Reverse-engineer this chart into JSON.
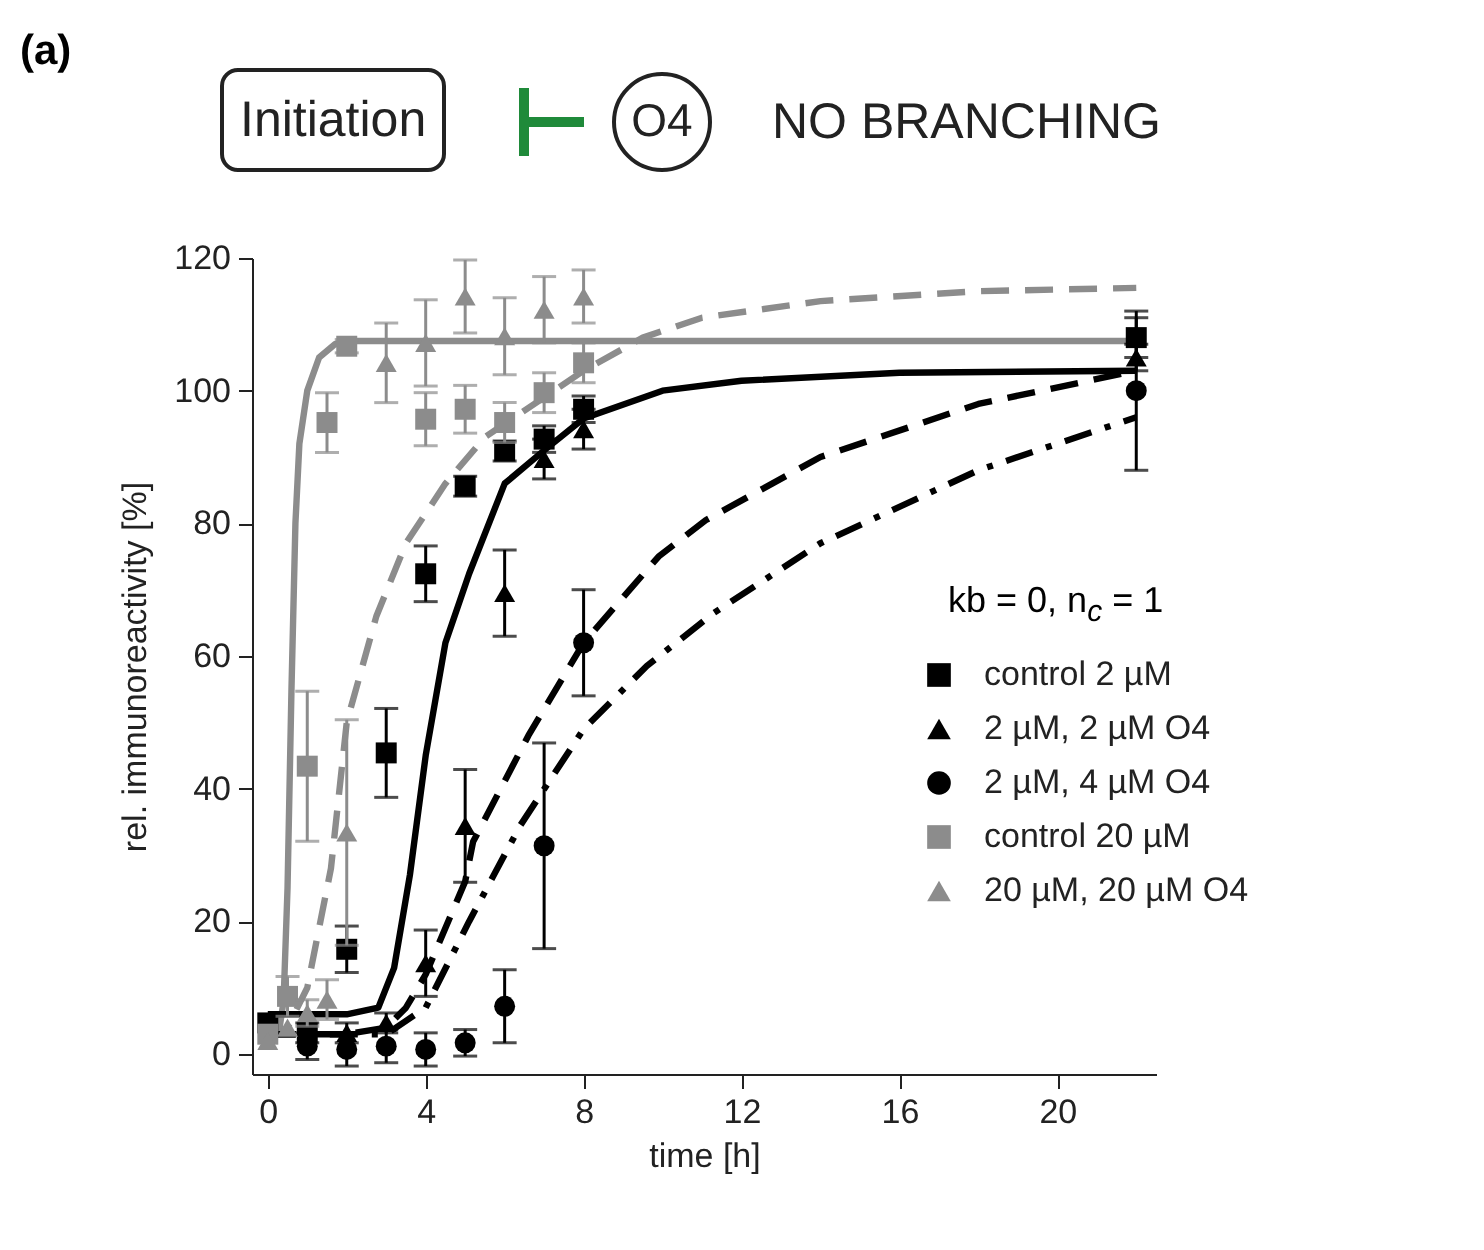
{
  "chart_data": {
    "type": "scatter",
    "annotations": [
      "(a)",
      "Initiation",
      "O4",
      "NO BRANCHING"
    ],
    "xlabel": "time [h]",
    "ylabel": "rel. immunoreactivity [%]",
    "legend_title": "kb = 0, n$_{c}$ = 1",
    "xlim": [
      -0.4,
      22.5
    ],
    "ylim": [
      -3,
      120
    ],
    "xticks": [
      0,
      4,
      8,
      12,
      16,
      20
    ],
    "yticks": [
      0,
      20,
      40,
      60,
      80,
      100,
      120
    ],
    "grid": false,
    "legend": "bottom right",
    "series": [
      {
        "type": "line",
        "color": "#8c8c8c",
        "line_style": "solid",
        "x": [
          0,
          0.3,
          0.4,
          0.5,
          0.6,
          0.7,
          0.8,
          1.0,
          1.3,
          1.7,
          2.2,
          22
        ],
        "values": [
          3,
          4,
          8,
          25,
          55,
          80,
          92,
          100,
          105,
          107,
          107.5,
          107.5
        ]
      },
      {
        "type": "line",
        "color": "#000000",
        "line_style": "solid",
        "x": [
          0,
          2,
          2.8,
          3.2,
          3.6,
          4,
          4.5,
          5.1,
          6,
          7,
          8,
          10,
          12,
          16,
          22
        ],
        "values": [
          6,
          6,
          7,
          13,
          27,
          45,
          62,
          72.4,
          86,
          91,
          95.8,
          100,
          101.5,
          102.7,
          103
        ]
      },
      {
        "type": "line",
        "color": "#8c8c8c",
        "line_style": "dashed",
        "x": [
          0,
          0.5,
          1,
          1.6,
          2,
          2.75,
          3.5,
          4.5,
          5.5,
          7,
          8,
          9.5,
          11,
          14,
          18,
          22
        ],
        "values": [
          2,
          4,
          10,
          28,
          50,
          66,
          77,
          86,
          93,
          99,
          103,
          108,
          111,
          113.5,
          115,
          115.5
        ]
      },
      {
        "type": "line",
        "color": "#000000",
        "line_style": "dashed",
        "x": [
          0,
          2,
          3,
          3.5,
          4,
          5,
          5.2,
          6.6,
          8,
          9.9,
          11.1,
          14,
          18,
          22
        ],
        "values": [
          3,
          3,
          4,
          7,
          12,
          26,
          32,
          48,
          62,
          75,
          80.5,
          90,
          98,
          103
        ]
      },
      {
        "type": "line",
        "color": "#000000",
        "line_style": "dashdot",
        "x": [
          0,
          3,
          4,
          5.1,
          6.4,
          8,
          9.6,
          11.3,
          14,
          18,
          22
        ],
        "values": [
          3,
          3,
          7,
          20,
          34.5,
          49,
          58.5,
          66.5,
          77,
          88,
          96
        ]
      },
      {
        "name": "control 2 µM",
        "marker": "square",
        "color": "#000000",
        "x": [
          0,
          1,
          2,
          3,
          4,
          5,
          6,
          7,
          8,
          22
        ],
        "values": [
          4.7,
          3.2,
          15.8,
          45.4,
          72.4,
          85.6,
          90.9,
          92.7,
          97.2,
          108
        ],
        "errors": [
          null,
          1.5,
          3.5,
          6.7,
          4.2,
          1.5,
          1.5,
          2,
          2,
          3
        ]
      },
      {
        "name": "2 µM, 2 µM O4",
        "marker": "triangle",
        "color": "#000000",
        "x": [
          2,
          3,
          4,
          5,
          6,
          7,
          8,
          22
        ],
        "values": [
          3.2,
          4.7,
          13.7,
          34.4,
          69.5,
          89.7,
          94.2,
          105
        ],
        "errors": [
          1.5,
          1.5,
          5,
          8.5,
          6.5,
          3,
          3,
          2
        ]
      },
      {
        "name": "2 µM, 4 µM O4",
        "marker": "circle",
        "color": "#000000",
        "x": [
          1,
          2,
          3,
          4,
          5,
          6,
          7,
          8,
          22
        ],
        "values": [
          1.2,
          0.7,
          1.2,
          0.7,
          1.7,
          7.2,
          31.4,
          62,
          100
        ],
        "errors": [
          2,
          2.5,
          2.5,
          2.5,
          2,
          5.5,
          15.5,
          8,
          12
        ]
      },
      {
        "name": "control 20 µM",
        "marker": "square",
        "color": "#8c8c8c",
        "x": [
          0,
          0.5,
          1,
          1.5,
          2,
          4,
          5,
          6,
          7,
          8
        ],
        "values": [
          3,
          8.7,
          43.4,
          95.2,
          106.7,
          95.7,
          97.2,
          95.2,
          99.7,
          104.2
        ],
        "errors": [
          null,
          3,
          11.3,
          4.5,
          1,
          4,
          3.6,
          3,
          3,
          3
        ]
      },
      {
        "name": "20 µM, 20 µM O4",
        "marker": "triangle",
        "color": "#8c8c8c",
        "x": [
          0,
          0.5,
          1,
          1.5,
          2,
          3,
          4,
          5,
          6,
          7,
          8
        ],
        "values": [
          2,
          4,
          6.2,
          8.2,
          33.4,
          104.2,
          107.2,
          114.2,
          108.2,
          112.2,
          114.2
        ],
        "errors": [
          null,
          null,
          2,
          3,
          17,
          6,
          6.5,
          5.5,
          5.8,
          5,
          4
        ]
      }
    ]
  }
}
